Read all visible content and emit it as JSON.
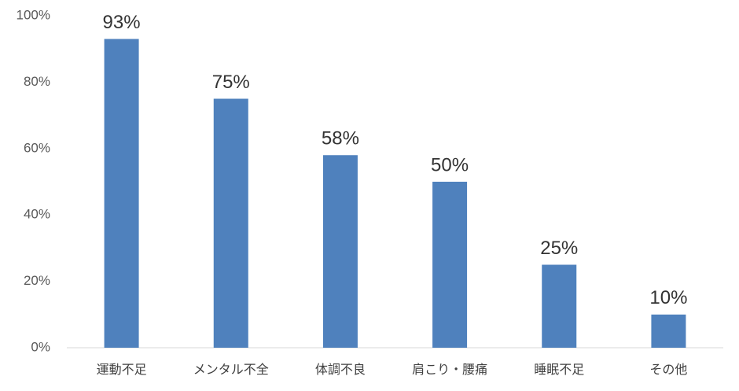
{
  "chart_data": {
    "type": "bar",
    "categories": [
      "運動不足",
      "メンタル不全",
      "体調不良",
      "肩こり・腰痛",
      "睡眠不足",
      "その他"
    ],
    "values": [
      93,
      75,
      58,
      50,
      25,
      10
    ],
    "value_labels": [
      "93%",
      "75%",
      "58%",
      "50%",
      "25%",
      "10%"
    ],
    "color": "#4f81bd",
    "ylim": [
      0,
      100
    ],
    "yticks": [
      {
        "value": 0,
        "label": "0%"
      },
      {
        "value": 20,
        "label": "20%"
      },
      {
        "value": 40,
        "label": "40%"
      },
      {
        "value": 60,
        "label": "60%"
      },
      {
        "value": 80,
        "label": "80%"
      },
      {
        "value": 100,
        "label": "100%"
      }
    ],
    "grid": false
  }
}
